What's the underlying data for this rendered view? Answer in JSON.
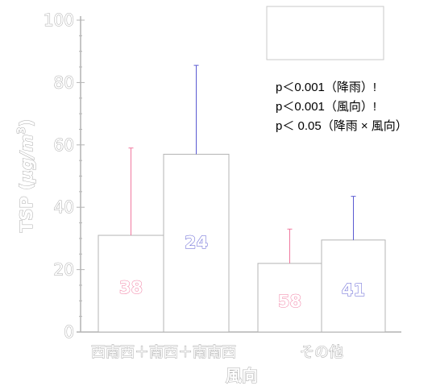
{
  "chart_data": {
    "type": "bar",
    "title": "",
    "ylabel": "TSP (µg/m³)",
    "ylabel_main": "TSP (",
    "ylabel_unit": "µg/m",
    "ylabel_exp": "3",
    "ylabel_close": ")",
    "xlabel": "風向",
    "ylim": [
      0,
      100
    ],
    "yticks": [
      "0",
      "20",
      "40",
      "60",
      "80",
      "100"
    ],
    "categories": [
      "西南西＋南西＋南南西",
      "その他"
    ],
    "series": [
      {
        "key": "a",
        "values": [
          31,
          22
        ],
        "errors": [
          28,
          11
        ],
        "counts": [
          "38",
          "58"
        ],
        "color": "#f0799f"
      },
      {
        "key": "b",
        "values": [
          57,
          29.5
        ],
        "errors": [
          28.5,
          14
        ],
        "counts": [
          "24",
          "41"
        ],
        "color": "#5a5ad2"
      }
    ],
    "stats": [
      "p＜0.001（降雨）!",
      "p＜0.001（風向）!",
      "p＜  0.05（降雨 × 風向）"
    ],
    "legend": "top-right"
  }
}
